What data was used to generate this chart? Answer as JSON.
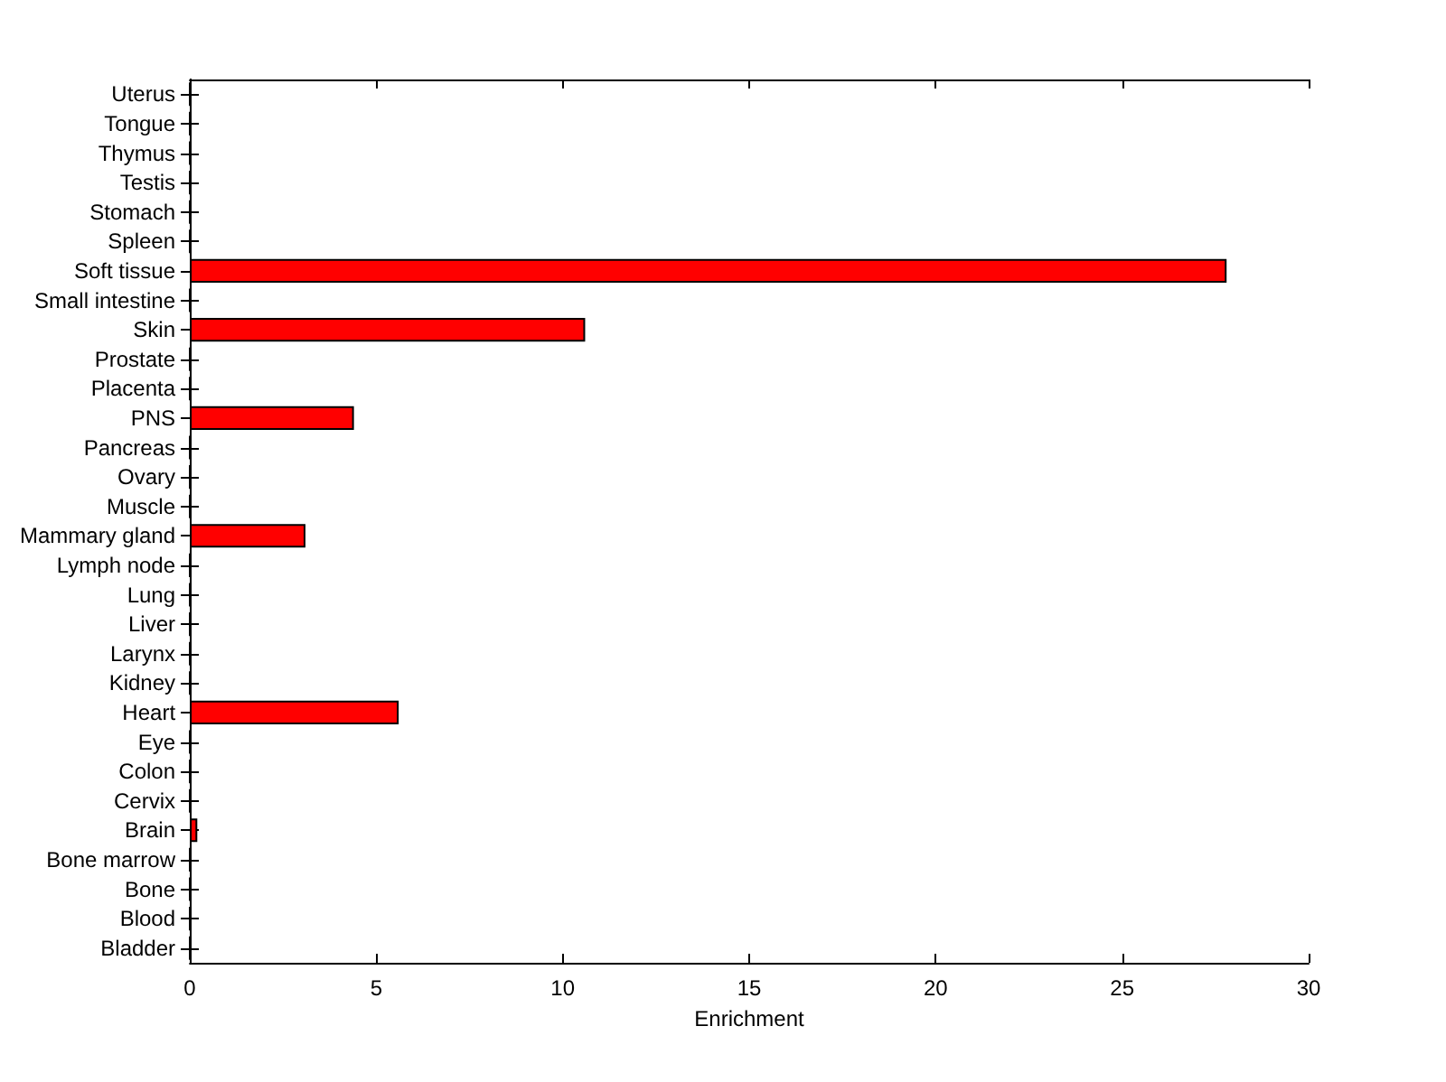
{
  "chart_data": {
    "type": "bar",
    "orientation": "horizontal",
    "xlabel": "Enrichment",
    "categories": [
      "Uterus",
      "Tongue",
      "Thymus",
      "Testis",
      "Stomach",
      "Spleen",
      "Soft tissue",
      "Small intestine",
      "Skin",
      "Prostate",
      "Placenta",
      "PNS",
      "Pancreas",
      "Ovary",
      "Muscle",
      "Mammary gland",
      "Lymph node",
      "Lung",
      "Liver",
      "Larynx",
      "Kidney",
      "Heart",
      "Eye",
      "Colon",
      "Cervix",
      "Brain",
      "Bone marrow",
      "Bone",
      "Blood",
      "Bladder"
    ],
    "values": [
      0,
      0,
      0,
      0,
      0,
      0,
      27.8,
      0,
      10.6,
      0,
      0,
      4.4,
      0,
      0,
      0,
      3.1,
      0,
      0,
      0,
      0,
      0,
      5.6,
      0,
      0,
      0,
      0.2,
      0,
      0,
      0,
      0
    ],
    "color": "#ff0000",
    "xlim": [
      0,
      30
    ],
    "xticks": [
      0,
      5,
      10,
      15,
      20,
      25,
      30
    ]
  }
}
